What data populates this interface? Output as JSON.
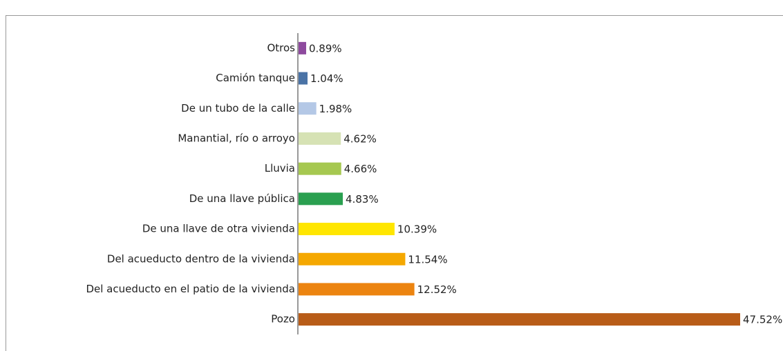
{
  "chart_data": {
    "type": "bar",
    "orientation": "horizontal",
    "categories": [
      "Otros",
      "Camión tanque",
      "De un tubo de la calle",
      "Manantial, río o arroyo",
      "Lluvia",
      "De una llave pública",
      "De una llave de otra vivienda",
      "Del acueducto dentro de la vivienda",
      "Del acueducto en el patio de la vivienda",
      "Pozo"
    ],
    "values": [
      0.89,
      1.04,
      1.98,
      4.62,
      4.66,
      4.83,
      10.39,
      11.54,
      12.52,
      47.52
    ],
    "value_labels": [
      "0.89%",
      "1.04%",
      "1.98%",
      "4.62%",
      "4.66%",
      "4.83%",
      "10.39%",
      "11.54%",
      "12.52%",
      "47.52%"
    ],
    "colors": [
      "#8e4a9e",
      "#4a73a6",
      "#b4c8e6",
      "#d6e2b4",
      "#a6c850",
      "#2aa050",
      "#ffe600",
      "#f5a800",
      "#ec8410",
      "#b85c18"
    ]
  }
}
